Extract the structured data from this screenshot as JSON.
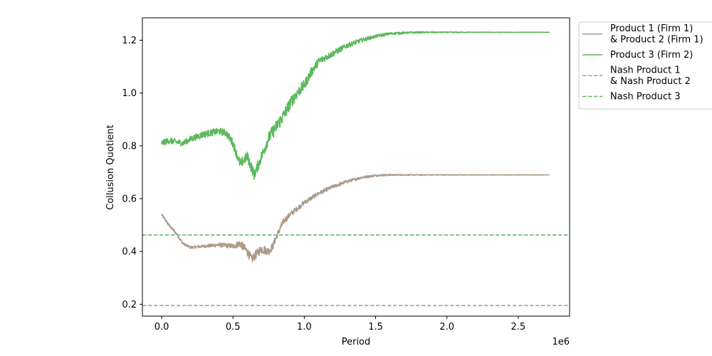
{
  "chart_data": {
    "type": "line",
    "xlabel": "Period",
    "ylabel": "Collusion Quotient",
    "x_scale_note": "1e6",
    "xlim": [
      -0.135,
      2.86
    ],
    "ylim": [
      0.155,
      1.285
    ],
    "x_ticks": [
      0.0,
      0.5,
      1.0,
      1.5,
      2.0,
      2.5
    ],
    "x_tick_labels": [
      "0.0",
      "0.5",
      "1.0",
      "1.5",
      "2.0",
      "2.5"
    ],
    "y_ticks": [
      0.2,
      0.4,
      0.6,
      0.8,
      1.0,
      1.2
    ],
    "y_tick_labels": [
      "0.2",
      "0.4",
      "0.6",
      "0.8",
      "1.0",
      "1.2"
    ],
    "grid": false,
    "legend_position": "outside-top-right",
    "series": [
      {
        "name": "Product 1 (Firm 1)\n& Product 2 (Firm 1)",
        "legend_lines": [
          "Product 1 (Firm 1)",
          "& Product 2 (Firm 1)"
        ],
        "color": "#ab9a8a",
        "style": "solid",
        "x": [
          0.0,
          0.05,
          0.1,
          0.15,
          0.2,
          0.3,
          0.4,
          0.5,
          0.55,
          0.6,
          0.63,
          0.7,
          0.75,
          0.78,
          0.8,
          0.85,
          0.9,
          1.0,
          1.1,
          1.2,
          1.3,
          1.4,
          1.5,
          1.6,
          1.8,
          2.0,
          2.2,
          2.5,
          2.72
        ],
        "y": [
          0.54,
          0.5,
          0.47,
          0.43,
          0.415,
          0.42,
          0.425,
          0.42,
          0.43,
          0.4,
          0.37,
          0.41,
          0.4,
          0.42,
          0.45,
          0.51,
          0.54,
          0.585,
          0.62,
          0.645,
          0.665,
          0.68,
          0.688,
          0.69,
          0.69,
          0.69,
          0.69,
          0.69,
          0.69
        ],
        "noise": [
          0.005,
          0.006,
          0.006,
          0.005,
          0.005,
          0.006,
          0.008,
          0.01,
          0.015,
          0.017,
          0.017,
          0.017,
          0.016,
          0.014,
          0.013,
          0.012,
          0.01,
          0.009,
          0.008,
          0.007,
          0.006,
          0.005,
          0.004,
          0.003,
          0.002,
          0.0015,
          0.001,
          0.001,
          0.001
        ]
      },
      {
        "name": "Product 3 (Firm 2)",
        "legend_lines": [
          "Product 3 (Firm 2)"
        ],
        "color": "#5cb85c",
        "style": "solid",
        "x": [
          0.0,
          0.05,
          0.1,
          0.15,
          0.2,
          0.3,
          0.4,
          0.45,
          0.5,
          0.55,
          0.6,
          0.65,
          0.7,
          0.75,
          0.8,
          0.85,
          0.9,
          0.95,
          1.0,
          1.05,
          1.1,
          1.2,
          1.3,
          1.4,
          1.5,
          1.6,
          1.7,
          1.8,
          2.0,
          2.2,
          2.5,
          2.72
        ],
        "y": [
          0.81,
          0.82,
          0.815,
          0.81,
          0.825,
          0.845,
          0.855,
          0.85,
          0.81,
          0.73,
          0.76,
          0.69,
          0.76,
          0.83,
          0.87,
          0.91,
          0.96,
          1.0,
          1.03,
          1.08,
          1.12,
          1.15,
          1.18,
          1.2,
          1.215,
          1.225,
          1.228,
          1.23,
          1.23,
          1.23,
          1.23,
          1.23
        ],
        "noise": [
          0.012,
          0.012,
          0.012,
          0.012,
          0.012,
          0.013,
          0.013,
          0.014,
          0.016,
          0.018,
          0.02,
          0.02,
          0.022,
          0.024,
          0.025,
          0.025,
          0.024,
          0.022,
          0.02,
          0.018,
          0.015,
          0.012,
          0.01,
          0.008,
          0.006,
          0.005,
          0.004,
          0.003,
          0.002,
          0.0015,
          0.001,
          0.001
        ]
      },
      {
        "name": "Nash Product 1\n& Nash Product 2",
        "legend_lines": [
          "Nash Product 1",
          "& Nash Product 2"
        ],
        "color": "#ab9a8a",
        "style": "dashed",
        "hline": 0.195
      },
      {
        "name": "Nash Product 3",
        "legend_lines": [
          "Nash Product 3"
        ],
        "color": "#5cb85c",
        "style": "dashed",
        "hline": 0.462
      }
    ]
  }
}
